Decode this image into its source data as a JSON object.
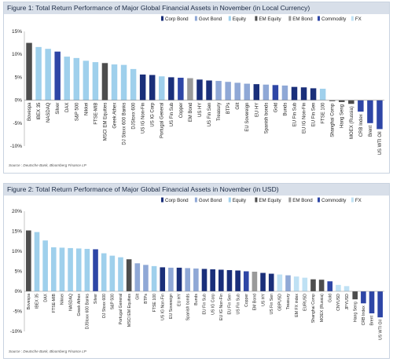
{
  "colors": {
    "Corp Bond": "#1a2f7a",
    "Govt Bond": "#8fa8d6",
    "Equity": "#9fd0ec",
    "EM Equity": "#4d4d4d",
    "EM Bond": "#9a9a9a",
    "Commodity": "#2e46a6",
    "FX": "#bfe1f4"
  },
  "chart_data": [
    {
      "type": "bar",
      "title": "Figure 1: Total Return Performance of Major Global Financial Assets in November (in Local Currency)",
      "source": "Source : Deutsche Bank, Bloomberg Finance LP",
      "legend": [
        "Corp Bond",
        "Govt Bond",
        "Equity",
        "EM Equity",
        "EM Bond",
        "Commodity",
        "FX"
      ],
      "legend_position": "top-right",
      "ylim": [
        -10,
        15
      ],
      "yticks": [
        "15%",
        "10%",
        "5%",
        "0%",
        "-5%",
        "-10%"
      ],
      "ytick_values": [
        15,
        10,
        5,
        0,
        -5,
        -10
      ],
      "grid": false,
      "categories": [
        "Bovespa",
        "IBEX 35",
        "NASDAQ",
        "Silver",
        "DAX",
        "S&P 500",
        "Nikkei",
        "FTSE-MIB",
        "MSCI EM Equities",
        "Greek Athex",
        "DJ Stoxx 600 Banks",
        "DJStoxx 600",
        "US IG Non-Fin",
        "US IG Corp",
        "Portugal General",
        "US Fin Sub",
        "Copper",
        "EM Bond",
        "US HY",
        "US Fin Sen",
        "Treasury",
        "BTPs",
        "Gilt",
        "EU Sovereign",
        "EU HY",
        "Spanish bonds",
        "Gold",
        "Bunds",
        "EU Fin Sub",
        "EU IG Non-Fin",
        "EU Fin Sen",
        "FTSE 100",
        "Shanghai Comp",
        "Hang Seng",
        "MOEX (Russia)",
        "CRB Index",
        "Brent",
        "US WTI Oil"
      ],
      "classes": [
        "EM Equity",
        "Equity",
        "Equity",
        "Commodity",
        "Equity",
        "Equity",
        "Equity",
        "Equity",
        "EM Equity",
        "Equity",
        "Equity",
        "Equity",
        "Corp Bond",
        "Corp Bond",
        "Equity",
        "Corp Bond",
        "Commodity",
        "EM Bond",
        "Corp Bond",
        "Corp Bond",
        "Govt Bond",
        "Govt Bond",
        "Govt Bond",
        "Govt Bond",
        "Corp Bond",
        "Govt Bond",
        "Commodity",
        "Govt Bond",
        "Corp Bond",
        "Corp Bond",
        "Corp Bond",
        "Equity",
        "EM Equity",
        "EM Equity",
        "EM Equity",
        "Commodity",
        "Commodity",
        "Commodity"
      ],
      "values": [
        12.5,
        11.6,
        11.2,
        10.6,
        9.5,
        9.2,
        8.6,
        8.3,
        8.1,
        7.8,
        7.7,
        6.8,
        5.6,
        5.5,
        5.2,
        5.0,
        4.9,
        4.8,
        4.5,
        4.3,
        4.2,
        4.0,
        3.8,
        3.6,
        3.5,
        3.4,
        3.3,
        3.2,
        2.9,
        2.8,
        2.6,
        2.5,
        -0.2,
        -0.4,
        -0.8,
        -2.5,
        -5.0,
        -6.3
      ]
    },
    {
      "type": "bar",
      "title": "Figure 2: Total Return Performance of Major Global Financial Assets in November (in USD)",
      "source": "Source : Deutsche Bank, Bloomberg Finance LP",
      "legend": [
        "Corp Bond",
        "Govt Bond",
        "Equity",
        "EM Equity",
        "EM Bond",
        "Commodity",
        "FX"
      ],
      "legend_position": "top-right",
      "ylim": [
        -10,
        20
      ],
      "yticks": [
        "20%",
        "15%",
        "10%",
        "5%",
        "0%",
        "-5%",
        "-10%"
      ],
      "ytick_values": [
        20,
        15,
        10,
        5,
        0,
        -5,
        -10
      ],
      "grid": false,
      "categories": [
        "Bovespa",
        "IBEX 35",
        "DAX",
        "FTSE-MIB",
        "Nikkei",
        "NASDAQ",
        "Greek Athex",
        "DJStoxx 600 Banks",
        "Silver",
        "DJ Stoxx 600",
        "S&P 500",
        "Portugal General",
        "MSCI EM Equities",
        "Gilt",
        "BTPs",
        "FTSE 100",
        "US IG Non-Fin",
        "EU Sovereign",
        "EU HY",
        "Spanish bonds",
        "Bunds",
        "EU Fin Sub",
        "US IG Corp",
        "EU IG Non-Fin",
        "EU Fin Sen",
        "US Fin Sub",
        "Copper",
        "EM Bond",
        "US HY",
        "US Fin Sen",
        "GBPUSD",
        "Treasury",
        "EM FX index",
        "EURUSD",
        "Shanghai Comp",
        "MOEX (Russia)",
        "Gold",
        "CNYUSD",
        "JPYUSD",
        "Hang Seng",
        "CRB Index",
        "Brent",
        "US WTI Oil"
      ],
      "classes": [
        "EM Equity",
        "Equity",
        "Equity",
        "Equity",
        "Equity",
        "Equity",
        "Equity",
        "Equity",
        "Commodity",
        "Equity",
        "Equity",
        "Equity",
        "EM Equity",
        "Govt Bond",
        "Govt Bond",
        "Equity",
        "Corp Bond",
        "Govt Bond",
        "Corp Bond",
        "Govt Bond",
        "Govt Bond",
        "Corp Bond",
        "Corp Bond",
        "Corp Bond",
        "Corp Bond",
        "Corp Bond",
        "Commodity",
        "EM Bond",
        "Corp Bond",
        "Corp Bond",
        "FX",
        "Govt Bond",
        "FX",
        "FX",
        "EM Equity",
        "EM Equity",
        "Commodity",
        "FX",
        "FX",
        "EM Equity",
        "Commodity",
        "Commodity",
        "Commodity"
      ],
      "values": [
        15.2,
        14.8,
        12.7,
        11.0,
        10.9,
        10.8,
        10.7,
        10.6,
        10.5,
        9.5,
        8.9,
        8.5,
        8.0,
        7.0,
        6.6,
        6.3,
        6.0,
        5.9,
        5.9,
        5.8,
        5.7,
        5.6,
        5.5,
        5.4,
        5.3,
        5.2,
        5.0,
        4.9,
        4.6,
        4.4,
        4.2,
        4.0,
        3.7,
        3.4,
        3.0,
        2.9,
        2.5,
        1.6,
        1.3,
        -2.0,
        -3.0,
        -5.5,
        -6.5
      ]
    }
  ]
}
